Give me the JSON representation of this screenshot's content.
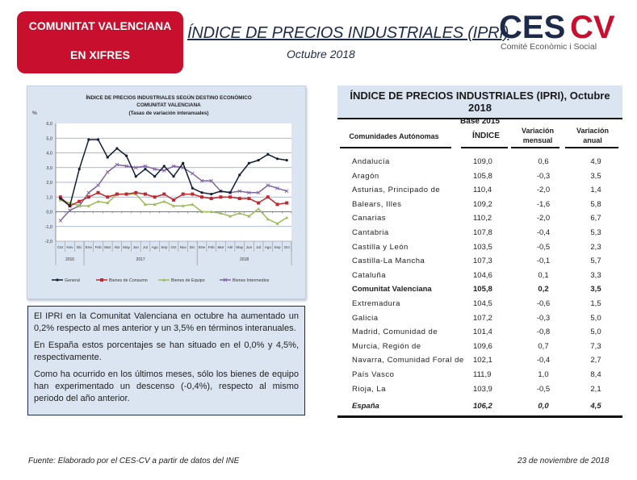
{
  "header": {
    "badge_line1": "COMUNITAT VALENCIANA",
    "badge_line2": "EN XIFRES",
    "title": "ÍNDICE DE PRECIOS INDUSTRIALES (IPRI)",
    "subtitle": "Octubre 2018",
    "logo_text_main": "CESCV",
    "logo_text_main_part1": "CES",
    "logo_text_main_part2": "CV",
    "logo_tagline": "Comité Econòmic i Social",
    "colors": {
      "brand_red": "#c8102e",
      "navy": "#1d2b4a"
    }
  },
  "chart_data": {
    "type": "line",
    "title": "ÍNDICE DE PRECIOS INDUSTRIALES SEGÚN DESTINO ECONÓMICO",
    "title_line2": "COMUNITAT  VALENCIANA",
    "subtitle": "(Tasas de variación interanuales)",
    "ylabel": "%",
    "ylim": [
      -2.0,
      6.0
    ],
    "yticks": [
      "6,0",
      "5,0",
      "4,0",
      "3,0",
      "2,0",
      "1,0",
      "0,0",
      "-1,0",
      "-2,0"
    ],
    "categories": [
      "Oct",
      "Nov",
      "Dic",
      "Ene",
      "Feb",
      "Mar",
      "Abr",
      "May",
      "Jun",
      "Jul",
      "Ago",
      "Sep",
      "Oct",
      "Nov",
      "Dic",
      "Ene",
      "Feb",
      "Mar",
      "Abr",
      "May",
      "Jun",
      "Jul",
      "Ago",
      "Sep",
      "Oct"
    ],
    "year_groups": [
      {
        "label": "2016",
        "span": 3
      },
      {
        "label": "2017",
        "span": 12
      },
      {
        "label": "2018",
        "span": 10
      }
    ],
    "legend_position": "bottom",
    "grid": true,
    "series": [
      {
        "name": "General",
        "color": "#0f1f36",
        "marker": "circle",
        "values": [
          0.9,
          0.4,
          2.9,
          4.9,
          4.9,
          3.7,
          4.3,
          3.8,
          2.4,
          2.9,
          2.4,
          3.1,
          2.4,
          3.3,
          1.6,
          1.3,
          1.2,
          1.4,
          1.3,
          2.5,
          3.3,
          3.5,
          3.9,
          3.6,
          3.5
        ]
      },
      {
        "name": "Bienes de Consumo",
        "color": "#c0282d",
        "marker": "square",
        "values": [
          1.0,
          0.4,
          0.7,
          1.0,
          1.3,
          1.0,
          1.2,
          1.2,
          1.3,
          1.2,
          1.0,
          1.2,
          0.8,
          1.2,
          1.2,
          1.0,
          0.9,
          1.0,
          1.0,
          0.9,
          0.9,
          0.6,
          1.0,
          0.5,
          0.6
        ]
      },
      {
        "name": "Bienes de Equipo",
        "color": "#9bbb59",
        "marker": "triangle",
        "values": [
          0.8,
          0.6,
          0.4,
          0.4,
          0.7,
          0.6,
          1.2,
          1.2,
          1.2,
          0.5,
          0.5,
          0.7,
          0.4,
          0.4,
          0.5,
          0.0,
          0.0,
          -0.1,
          -0.3,
          -0.1,
          -0.3,
          0.2,
          -0.5,
          -0.8,
          -0.4
        ]
      },
      {
        "name": "Bienes Intermedios",
        "color": "#8064a2",
        "marker": "x",
        "values": [
          -0.6,
          0.1,
          0.4,
          1.3,
          1.8,
          2.7,
          3.2,
          3.1,
          3.0,
          3.1,
          2.9,
          2.8,
          3.1,
          3.0,
          2.6,
          2.1,
          2.1,
          1.4,
          1.3,
          1.4,
          1.3,
          1.3,
          1.8,
          1.6,
          1.4
        ]
      }
    ]
  },
  "summary": {
    "paragraphs": [
      "El IPRI en la Comunitat Valenciana en octubre ha aumentado un 0,2% respecto al mes anterior y un 3,5% en términos interanuales.",
      "En España estos porcentajes se han situado en el 0,0% y 4,5%, respectivamente.",
      "Como ha ocurrido en los últimos meses, sólo los bienes de equipo han experimentado un descenso (-0,4%), respecto al mismo periodo del año anterior."
    ]
  },
  "table": {
    "title": "ÍNDICE DE PRECIOS INDUSTRIALES (IPRI), Octubre 2018",
    "base": "Base 2015",
    "columns": [
      "Comunidades Autónomas",
      "ÍNDICE",
      "Variación mensual",
      "Variación anual"
    ],
    "column_lines": {
      "c3a": "Variación",
      "c3b": "mensual",
      "c4a": "Variación",
      "c4b": "anual"
    },
    "rows": [
      {
        "name": "Andalucía",
        "indice": "109,0",
        "mensual": "0,6",
        "anual": "4,9"
      },
      {
        "name": "Aragón",
        "indice": "105,8",
        "mensual": "-0,3",
        "anual": "3,5"
      },
      {
        "name": "Asturias, Principado de",
        "indice": "110,4",
        "mensual": "-2,0",
        "anual": "1,4"
      },
      {
        "name": "Balears, Illes",
        "indice": "109,2",
        "mensual": "-1,6",
        "anual": "5,8"
      },
      {
        "name": "Canarias",
        "indice": "110,2",
        "mensual": "-2,0",
        "anual": "6,7"
      },
      {
        "name": "Cantabria",
        "indice": "107,8",
        "mensual": "-0,4",
        "anual": "5,3"
      },
      {
        "name": "Castilla y León",
        "indice": "103,5",
        "mensual": "-0,5",
        "anual": "2,3"
      },
      {
        "name": "Castilla-La Mancha",
        "indice": "107,3",
        "mensual": "-0,1",
        "anual": "5,7"
      },
      {
        "name": "Cataluña",
        "indice": "104,6",
        "mensual": "0,1",
        "anual": "3,3"
      },
      {
        "name": "Comunitat Valenciana",
        "indice": "105,8",
        "mensual": "0,2",
        "anual": "3,5",
        "highlight": true
      },
      {
        "name": "Extremadura",
        "indice": "104,5",
        "mensual": "-0,6",
        "anual": "1,5"
      },
      {
        "name": "Galicia",
        "indice": "107,2",
        "mensual": "-0,3",
        "anual": "5,0"
      },
      {
        "name": "Madrid, Comunidad de",
        "indice": "101,4",
        "mensual": "-0,8",
        "anual": "5,0"
      },
      {
        "name": "Murcia, Región de",
        "indice": "109,6",
        "mensual": "0,7",
        "anual": "7,3"
      },
      {
        "name": "Navarra, Comunidad Foral de",
        "indice": "102,1",
        "mensual": "-0,4",
        "anual": "2,7"
      },
      {
        "name": "País Vasco",
        "indice": "111,9",
        "mensual": "1,0",
        "anual": "8,4"
      },
      {
        "name": "Rioja, La",
        "indice": "103,9",
        "mensual": "-0,5",
        "anual": "2,1"
      }
    ],
    "total": {
      "name": "España",
      "indice": "106,2",
      "mensual": "0,0",
      "anual": "4,5"
    }
  },
  "footer": {
    "source": "Fuente: Elaborado por el CES-CV a partir de datos del INE",
    "date": "23 de noviembre de 2018"
  }
}
